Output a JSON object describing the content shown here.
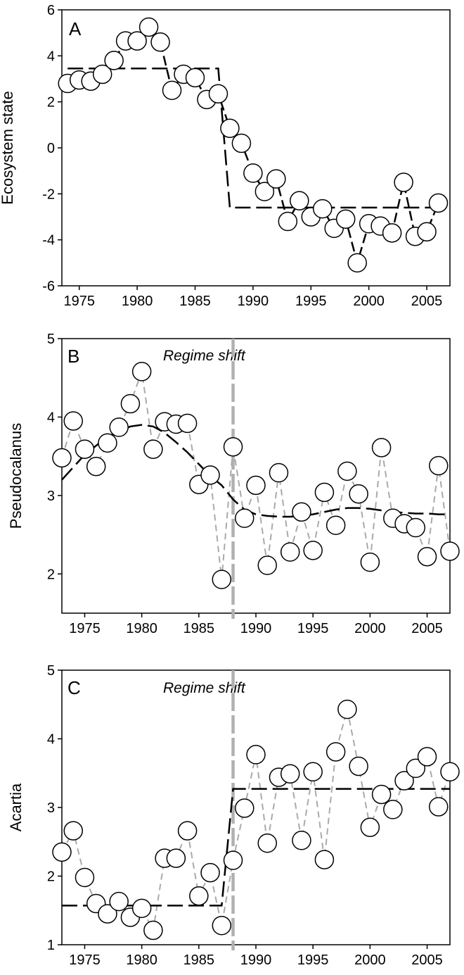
{
  "chart_data": [
    {
      "type": "line",
      "panel_label": "A",
      "ylabel": "Ecosystem state",
      "xlabel": "",
      "xlim": [
        1973.5,
        2007
      ],
      "ylim": [
        -6,
        6
      ],
      "x_ticks": [
        1975,
        1980,
        1985,
        1990,
        1995,
        2000,
        2005
      ],
      "y_ticks": [
        -6,
        -4,
        -2,
        0,
        2,
        4,
        6
      ],
      "grid": false,
      "series": [
        {
          "style": "points-with-black-dashed-connector",
          "x": [
            1974,
            1975,
            1976,
            1977,
            1978,
            1979,
            1980,
            1981,
            1982,
            1983,
            1984,
            1985,
            1986,
            1987,
            1988,
            1989,
            1990,
            1991,
            1992,
            1993,
            1994,
            1995,
            1996,
            1997,
            1998,
            1999,
            2000,
            2001,
            2002,
            2003,
            2004,
            2005,
            2006
          ],
          "values": [
            2.8,
            2.95,
            2.9,
            3.2,
            3.8,
            4.65,
            4.65,
            5.25,
            4.6,
            2.5,
            3.2,
            3.05,
            2.1,
            2.35,
            0.85,
            0.2,
            -1.1,
            -1.9,
            -1.35,
            -3.2,
            -2.3,
            -3.0,
            -2.65,
            -3.5,
            -3.1,
            -5.0,
            -3.3,
            -3.4,
            -3.7,
            -1.5,
            -3.85,
            -3.65,
            -2.4
          ]
        },
        {
          "style": "regime-step",
          "x": [
            1974,
            1987,
            1988,
            2006
          ],
          "values": [
            3.45,
            3.45,
            -2.6,
            -2.6
          ]
        }
      ]
    },
    {
      "type": "line",
      "panel_label": "B",
      "ylabel": "Pseudocalanus",
      "xlabel": "",
      "xlim": [
        1973,
        2007
      ],
      "ylim": [
        1.5,
        5
      ],
      "x_ticks": [
        1975,
        1980,
        1985,
        1990,
        1995,
        2000,
        2005
      ],
      "y_ticks": [
        2,
        3,
        4,
        5
      ],
      "grid": false,
      "annotation": "Regime shift",
      "regime_shift_year": 1988,
      "series": [
        {
          "style": "points-with-grey-dashed-connector",
          "x": [
            1973,
            1974,
            1975,
            1976,
            1977,
            1978,
            1979,
            1980,
            1981,
            1982,
            1983,
            1984,
            1985,
            1986,
            1987,
            1988,
            1989,
            1990,
            1991,
            1992,
            1993,
            1994,
            1995,
            1996,
            1997,
            1998,
            1999,
            2000,
            2001,
            2002,
            2003,
            2004,
            2005,
            2006,
            2007
          ],
          "values": [
            3.48,
            3.95,
            3.59,
            3.37,
            3.67,
            3.87,
            4.17,
            4.58,
            3.59,
            3.94,
            3.91,
            3.92,
            3.14,
            3.26,
            1.93,
            3.62,
            2.71,
            3.13,
            2.11,
            3.29,
            2.28,
            2.79,
            2.3,
            3.04,
            2.62,
            3.31,
            3.02,
            2.15,
            3.61,
            2.71,
            2.64,
            2.59,
            2.22,
            3.38,
            2.29
          ]
        },
        {
          "style": "black-dashed-smooth-trend",
          "x": [
            1973,
            1975,
            1977,
            1979,
            1980,
            1981,
            1982,
            1983,
            1984,
            1985,
            1986,
            1987,
            1988,
            1989,
            1990,
            1991,
            1992,
            1993,
            1994,
            1995,
            1996,
            1997,
            1998,
            1999,
            2000,
            2001,
            2002,
            2003,
            2004,
            2005,
            2006,
            2007
          ],
          "values": [
            3.2,
            3.52,
            3.75,
            3.88,
            3.9,
            3.88,
            3.8,
            3.68,
            3.55,
            3.4,
            3.25,
            3.13,
            2.95,
            2.82,
            2.76,
            2.74,
            2.73,
            2.73,
            2.74,
            2.76,
            2.79,
            2.82,
            2.84,
            2.84,
            2.83,
            2.81,
            2.79,
            2.78,
            2.77,
            2.77,
            2.76,
            2.76
          ]
        }
      ]
    },
    {
      "type": "line",
      "panel_label": "C",
      "ylabel": "Acartia",
      "xlabel": "",
      "xlim": [
        1973,
        2007
      ],
      "ylim": [
        1,
        5
      ],
      "x_ticks": [
        1975,
        1980,
        1985,
        1990,
        1995,
        2000,
        2005
      ],
      "y_ticks": [
        1,
        2,
        3,
        4,
        5
      ],
      "grid": false,
      "annotation": "Regime shift",
      "regime_shift_year": 1988,
      "series": [
        {
          "style": "points-with-grey-dashed-connector",
          "x": [
            1973,
            1974,
            1975,
            1976,
            1977,
            1978,
            1979,
            1980,
            1981,
            1982,
            1983,
            1984,
            1985,
            1986,
            1987,
            1988,
            1989,
            1990,
            1991,
            1992,
            1993,
            1994,
            1995,
            1996,
            1997,
            1998,
            1999,
            2000,
            2001,
            2002,
            2003,
            2004,
            2005,
            2006,
            2007
          ],
          "values": [
            2.35,
            2.66,
            1.98,
            1.6,
            1.45,
            1.63,
            1.4,
            1.53,
            1.21,
            2.26,
            2.26,
            2.66,
            1.71,
            2.05,
            1.28,
            2.23,
            2.99,
            3.77,
            2.48,
            3.44,
            3.49,
            2.52,
            3.52,
            2.24,
            3.81,
            4.43,
            3.6,
            2.71,
            3.19,
            2.97,
            3.39,
            3.57,
            3.74,
            3.01,
            3.52
          ]
        },
        {
          "style": "regime-step",
          "x": [
            1973,
            1987,
            1988,
            2007
          ],
          "values": [
            1.57,
            1.57,
            3.27,
            3.27
          ]
        }
      ]
    }
  ]
}
